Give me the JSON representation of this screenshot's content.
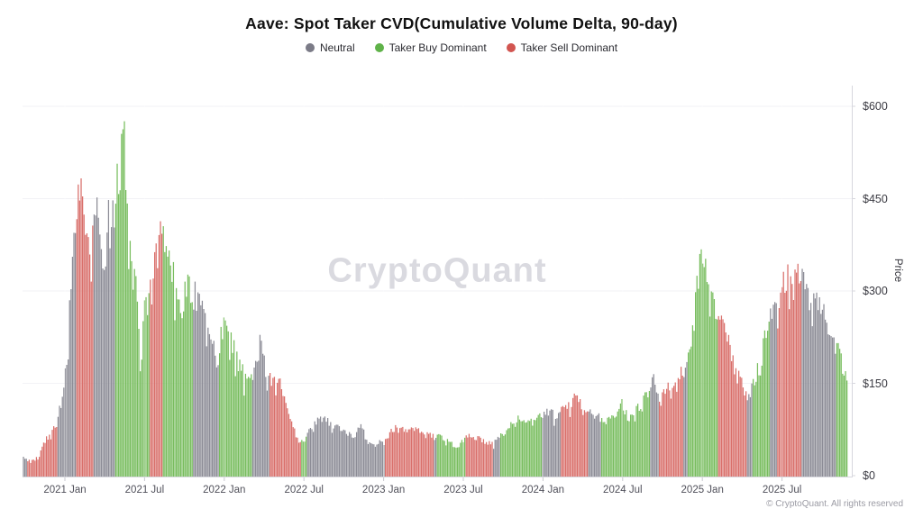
{
  "title": "Aave: Spot Taker CVD(Cumulative Volume Delta, 90-day)",
  "legend": [
    {
      "label": "Neutral",
      "key": "N",
      "color": "#7b7b87"
    },
    {
      "label": "Taker Buy Dominant",
      "key": "B",
      "color": "#5fb249"
    },
    {
      "label": "Taker Sell Dominant",
      "key": "S",
      "color": "#d25550"
    }
  ],
  "watermark": "CryptoQuant",
  "footer": {
    "copyright": "© CryptoQuant. All rights reserved"
  },
  "y_axis": {
    "title": "Price",
    "unit": "$",
    "ticks": [
      {
        "label": "$0",
        "value": 0
      },
      {
        "label": "$150",
        "value": 150
      },
      {
        "label": "$300",
        "value": 300
      },
      {
        "label": "$450",
        "value": 450
      },
      {
        "label": "$600",
        "value": 600
      }
    ]
  },
  "x_axis": {
    "ticks": [
      {
        "label": "2021 Jan",
        "year": 2021.0
      },
      {
        "label": "2021 Jul",
        "year": 2021.5
      },
      {
        "label": "2022 Jan",
        "year": 2022.0
      },
      {
        "label": "2022 Jul",
        "year": 2022.5
      },
      {
        "label": "2023 Jan",
        "year": 2023.0
      },
      {
        "label": "2023 Jul",
        "year": 2023.5
      },
      {
        "label": "2024 Jan",
        "year": 2024.0
      },
      {
        "label": "2024 Jul",
        "year": 2024.5
      },
      {
        "label": "2025 Jan",
        "year": 2025.0
      },
      {
        "label": "2025 Jul",
        "year": 2025.5
      }
    ]
  },
  "chart_data": {
    "type": "bar",
    "title": "Aave: Spot Taker CVD(Cumulative Volume Delta, 90-day)",
    "xlabel": "",
    "ylabel": "Price",
    "ylim": [
      0,
      640
    ],
    "x_range_years": [
      2020.73,
      2025.92
    ],
    "grid": "horizontal light gridlines at $150/$300/$450/$600",
    "legend_position": "top center",
    "bar_style": "dense daily price bars colored by taker CVD regime",
    "regime_labels": {
      "N": "Neutral",
      "B": "Taker Buy Dominant",
      "S": "Taker Sell Dominant"
    },
    "regime_colors": {
      "N": "#8c8c96",
      "B": "#78bd5e",
      "S": "#d96f6a"
    },
    "samples_format": [
      "decimal_year",
      "price_usd",
      "regime"
    ],
    "samples": [
      [
        2020.73,
        36,
        "N"
      ],
      [
        2020.76,
        30,
        "S"
      ],
      [
        2020.78,
        25,
        "S"
      ],
      [
        2020.81,
        28,
        "S"
      ],
      [
        2020.84,
        35,
        "S"
      ],
      [
        2020.86,
        55,
        "S"
      ],
      [
        2020.9,
        70,
        "S"
      ],
      [
        2020.93,
        84,
        "S"
      ],
      [
        2020.95,
        95,
        "N"
      ],
      [
        2020.98,
        130,
        "N"
      ],
      [
        2021.01,
        190,
        "N"
      ],
      [
        2021.03,
        300,
        "N"
      ],
      [
        2021.06,
        420,
        "N"
      ],
      [
        2021.07,
        480,
        "S"
      ],
      [
        2021.09,
        525,
        "S"
      ],
      [
        2021.11,
        460,
        "S"
      ],
      [
        2021.12,
        430,
        "S"
      ],
      [
        2021.14,
        395,
        "S"
      ],
      [
        2021.16,
        420,
        "S"
      ],
      [
        2021.18,
        440,
        "N"
      ],
      [
        2021.2,
        465,
        "N"
      ],
      [
        2021.21,
        420,
        "N"
      ],
      [
        2021.23,
        370,
        "N"
      ],
      [
        2021.25,
        345,
        "N"
      ],
      [
        2021.27,
        460,
        "N"
      ],
      [
        2021.29,
        420,
        "N"
      ],
      [
        2021.31,
        470,
        "B"
      ],
      [
        2021.32,
        500,
        "B"
      ],
      [
        2021.34,
        520,
        "B"
      ],
      [
        2021.36,
        570,
        "B"
      ],
      [
        2021.37,
        628,
        "B"
      ],
      [
        2021.38,
        560,
        "B"
      ],
      [
        2021.39,
        480,
        "B"
      ],
      [
        2021.4,
        420,
        "B"
      ],
      [
        2021.41,
        380,
        "B"
      ],
      [
        2021.42,
        365,
        "B"
      ],
      [
        2021.44,
        340,
        "B"
      ],
      [
        2021.45,
        315,
        "B"
      ],
      [
        2021.46,
        250,
        "B"
      ],
      [
        2021.48,
        200,
        "B"
      ],
      [
        2021.49,
        255,
        "B"
      ],
      [
        2021.5,
        307,
        "B"
      ],
      [
        2021.51,
        290,
        "B"
      ],
      [
        2021.53,
        300,
        "S"
      ],
      [
        2021.54,
        330,
        "S"
      ],
      [
        2021.56,
        360,
        "S"
      ],
      [
        2021.58,
        390,
        "S"
      ],
      [
        2021.6,
        423,
        "S"
      ],
      [
        2021.61,
        410,
        "B"
      ],
      [
        2021.63,
        415,
        "B"
      ],
      [
        2021.64,
        400,
        "B"
      ],
      [
        2021.67,
        370,
        "B"
      ],
      [
        2021.69,
        330,
        "B"
      ],
      [
        2021.71,
        285,
        "B"
      ],
      [
        2021.74,
        295,
        "B"
      ],
      [
        2021.76,
        330,
        "B"
      ],
      [
        2021.78,
        325,
        "B"
      ],
      [
        2021.8,
        331,
        "N"
      ],
      [
        2021.81,
        320,
        "N"
      ],
      [
        2021.84,
        300,
        "N"
      ],
      [
        2021.87,
        280,
        "N"
      ],
      [
        2021.89,
        262,
        "N"
      ],
      [
        2021.92,
        245,
        "N"
      ],
      [
        2021.95,
        200,
        "N"
      ],
      [
        2021.97,
        195,
        "B"
      ],
      [
        2021.98,
        265,
        "B"
      ],
      [
        2022.01,
        255,
        "B"
      ],
      [
        2022.03,
        230,
        "B"
      ],
      [
        2022.05,
        235,
        "B"
      ],
      [
        2022.07,
        215,
        "B"
      ],
      [
        2022.1,
        200,
        "B"
      ],
      [
        2022.12,
        180,
        "B"
      ],
      [
        2022.14,
        160,
        "B"
      ],
      [
        2022.17,
        165,
        "N"
      ],
      [
        2022.19,
        185,
        "N"
      ],
      [
        2022.21,
        205,
        "N"
      ],
      [
        2022.23,
        243,
        "N"
      ],
      [
        2022.25,
        200,
        "N"
      ],
      [
        2022.27,
        175,
        "N"
      ],
      [
        2022.28,
        178,
        "S"
      ],
      [
        2022.3,
        170,
        "S"
      ],
      [
        2022.32,
        165,
        "S"
      ],
      [
        2022.35,
        160,
        "S"
      ],
      [
        2022.37,
        140,
        "S"
      ],
      [
        2022.39,
        115,
        "S"
      ],
      [
        2022.41,
        98,
        "S"
      ],
      [
        2022.44,
        80,
        "S"
      ],
      [
        2022.46,
        62,
        "S"
      ],
      [
        2022.48,
        58,
        "B"
      ],
      [
        2022.5,
        66,
        "B"
      ],
      [
        2022.52,
        70,
        "N"
      ],
      [
        2022.54,
        85,
        "N"
      ],
      [
        2022.57,
        95,
        "N"
      ],
      [
        2022.6,
        104,
        "N"
      ],
      [
        2022.63,
        100,
        "N"
      ],
      [
        2022.66,
        92,
        "N"
      ],
      [
        2022.7,
        85,
        "N"
      ],
      [
        2022.73,
        80,
        "N"
      ],
      [
        2022.76,
        76,
        "N"
      ],
      [
        2022.8,
        68,
        "N"
      ],
      [
        2022.83,
        75,
        "N"
      ],
      [
        2022.86,
        90,
        "N"
      ],
      [
        2022.88,
        72,
        "N"
      ],
      [
        2022.9,
        58,
        "N"
      ],
      [
        2022.93,
        52,
        "N"
      ],
      [
        2022.97,
        60,
        "N"
      ],
      [
        2023.0,
        55,
        "N"
      ],
      [
        2023.01,
        60,
        "S"
      ],
      [
        2023.04,
        75,
        "S"
      ],
      [
        2023.06,
        84,
        "S"
      ],
      [
        2023.09,
        80,
        "S"
      ],
      [
        2023.13,
        82,
        "S"
      ],
      [
        2023.16,
        78,
        "S"
      ],
      [
        2023.19,
        80,
        "S"
      ],
      [
        2023.23,
        76,
        "S"
      ],
      [
        2023.26,
        72,
        "S"
      ],
      [
        2023.29,
        70,
        "S"
      ],
      [
        2023.31,
        68,
        "N"
      ],
      [
        2023.33,
        66,
        "B"
      ],
      [
        2023.35,
        68,
        "B"
      ],
      [
        2023.38,
        64,
        "B"
      ],
      [
        2023.41,
        60,
        "B"
      ],
      [
        2023.44,
        52,
        "B"
      ],
      [
        2023.47,
        47,
        "B"
      ],
      [
        2023.49,
        58,
        "B"
      ],
      [
        2023.51,
        62,
        "S"
      ],
      [
        2023.53,
        73,
        "S"
      ],
      [
        2023.57,
        68,
        "S"
      ],
      [
        2023.6,
        64,
        "S"
      ],
      [
        2023.64,
        60,
        "S"
      ],
      [
        2023.67,
        57,
        "S"
      ],
      [
        2023.69,
        58,
        "N"
      ],
      [
        2023.71,
        62,
        "N"
      ],
      [
        2023.73,
        68,
        "B"
      ],
      [
        2023.76,
        78,
        "B"
      ],
      [
        2023.79,
        85,
        "B"
      ],
      [
        2023.83,
        95,
        "B"
      ],
      [
        2023.86,
        101,
        "B"
      ],
      [
        2023.9,
        96,
        "B"
      ],
      [
        2023.93,
        92,
        "B"
      ],
      [
        2023.96,
        98,
        "B"
      ],
      [
        2023.99,
        104,
        "N"
      ],
      [
        2024.02,
        110,
        "N"
      ],
      [
        2024.05,
        108,
        "N"
      ],
      [
        2024.09,
        105,
        "N"
      ],
      [
        2024.11,
        112,
        "S"
      ],
      [
        2024.14,
        122,
        "S"
      ],
      [
        2024.18,
        130,
        "S"
      ],
      [
        2024.2,
        138,
        "S"
      ],
      [
        2024.22,
        128,
        "S"
      ],
      [
        2024.25,
        120,
        "S"
      ],
      [
        2024.28,
        113,
        "N"
      ],
      [
        2024.31,
        110,
        "N"
      ],
      [
        2024.34,
        105,
        "N"
      ],
      [
        2024.36,
        98,
        "B"
      ],
      [
        2024.38,
        92,
        "B"
      ],
      [
        2024.41,
        95,
        "B"
      ],
      [
        2024.44,
        100,
        "B"
      ],
      [
        2024.47,
        105,
        "B"
      ],
      [
        2024.5,
        128,
        "B"
      ],
      [
        2024.52,
        110,
        "B"
      ],
      [
        2024.54,
        100,
        "B"
      ],
      [
        2024.56,
        108,
        "B"
      ],
      [
        2024.59,
        118,
        "B"
      ],
      [
        2024.61,
        125,
        "B"
      ],
      [
        2024.63,
        132,
        "B"
      ],
      [
        2024.65,
        140,
        "B"
      ],
      [
        2024.67,
        155,
        "N"
      ],
      [
        2024.69,
        167,
        "N"
      ],
      [
        2024.71,
        158,
        "N"
      ],
      [
        2024.73,
        150,
        "S"
      ],
      [
        2024.75,
        148,
        "S"
      ],
      [
        2024.77,
        155,
        "S"
      ],
      [
        2024.79,
        150,
        "S"
      ],
      [
        2024.82,
        145,
        "S"
      ],
      [
        2024.84,
        160,
        "S"
      ],
      [
        2024.86,
        185,
        "S"
      ],
      [
        2024.88,
        175,
        "N"
      ],
      [
        2024.9,
        180,
        "N"
      ],
      [
        2024.91,
        200,
        "B"
      ],
      [
        2024.94,
        250,
        "B"
      ],
      [
        2024.96,
        310,
        "B"
      ],
      [
        2024.98,
        360,
        "B"
      ],
      [
        2025.0,
        385,
        "B"
      ],
      [
        2025.02,
        355,
        "B"
      ],
      [
        2025.03,
        330,
        "B"
      ],
      [
        2025.05,
        305,
        "B"
      ],
      [
        2025.07,
        320,
        "B"
      ],
      [
        2025.08,
        290,
        "B"
      ],
      [
        2025.1,
        270,
        "S"
      ],
      [
        2025.12,
        260,
        "S"
      ],
      [
        2025.15,
        240,
        "S"
      ],
      [
        2025.17,
        225,
        "S"
      ],
      [
        2025.19,
        200,
        "S"
      ],
      [
        2025.21,
        180,
        "S"
      ],
      [
        2025.24,
        165,
        "S"
      ],
      [
        2025.26,
        155,
        "S"
      ],
      [
        2025.28,
        140,
        "N"
      ],
      [
        2025.29,
        132,
        "N"
      ],
      [
        2025.31,
        150,
        "B"
      ],
      [
        2025.33,
        170,
        "B"
      ],
      [
        2025.36,
        195,
        "B"
      ],
      [
        2025.38,
        220,
        "B"
      ],
      [
        2025.4,
        248,
        "B"
      ],
      [
        2025.42,
        265,
        "N"
      ],
      [
        2025.43,
        278,
        "N"
      ],
      [
        2025.45,
        285,
        "N"
      ],
      [
        2025.47,
        300,
        "S"
      ],
      [
        2025.49,
        320,
        "S"
      ],
      [
        2025.51,
        335,
        "S"
      ],
      [
        2025.54,
        345,
        "S"
      ],
      [
        2025.56,
        330,
        "S"
      ],
      [
        2025.58,
        340,
        "S"
      ],
      [
        2025.6,
        355,
        "S"
      ],
      [
        2025.62,
        340,
        "N"
      ],
      [
        2025.64,
        330,
        "N"
      ],
      [
        2025.66,
        320,
        "N"
      ],
      [
        2025.68,
        310,
        "N"
      ],
      [
        2025.71,
        300,
        "N"
      ],
      [
        2025.74,
        290,
        "N"
      ],
      [
        2025.77,
        275,
        "N"
      ],
      [
        2025.8,
        255,
        "N"
      ],
      [
        2025.82,
        240,
        "N"
      ],
      [
        2025.84,
        225,
        "B"
      ],
      [
        2025.86,
        210,
        "B"
      ],
      [
        2025.88,
        190,
        "B"
      ],
      [
        2025.9,
        170,
        "B"
      ],
      [
        2025.92,
        158,
        "B"
      ]
    ]
  }
}
